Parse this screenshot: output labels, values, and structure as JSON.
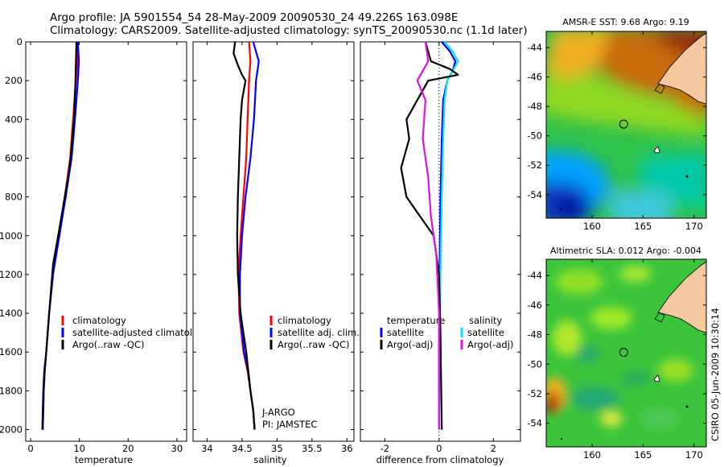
{
  "header": {
    "line1": "Argo profile: JA 5901554_54 28-May-2009 20090530_24 49.226S 163.098E",
    "line2": "Climatology: CARS2009. Satellite-adjusted climatology: synTS_20090530.nc (1.1d later)"
  },
  "footer_vertical": "CSIRO 05-Jun-2009 10:30:14",
  "colors": {
    "red": "#ff0000",
    "blue": "#0000ff",
    "black": "#000000",
    "cyan": "#00e5ff",
    "magenta": "#e010e0",
    "land": "#f5c8a0"
  },
  "chart_data": [
    {
      "type": "line",
      "xlabel": "temperature",
      "xlim": [
        -1,
        32
      ],
      "xticks": [
        "0",
        "10",
        "20",
        "30"
      ],
      "xtick_values": [
        0,
        10,
        20,
        30
      ],
      "ylim": [
        2060,
        0
      ],
      "yticks": [
        "0",
        "200",
        "400",
        "600",
        "800",
        "1000",
        "1200",
        "1400",
        "1600",
        "1800",
        "2000"
      ],
      "ytick_values": [
        0,
        200,
        400,
        600,
        800,
        1000,
        1200,
        1400,
        1600,
        1800,
        2000
      ],
      "legend": [
        "climatology",
        "satellite-adjusted climatology",
        "Argo(..raw -QC)"
      ],
      "series": [
        {
          "name": "climatology",
          "color": "red",
          "x": [
            9.6,
            9.6,
            9.3,
            8.7,
            8.1,
            7.0,
            5.8,
            4.6,
            3.8,
            3.2,
            2.9,
            2.7,
            2.6,
            2.5
          ],
          "y": [
            0,
            100,
            200,
            400,
            600,
            800,
            1000,
            1200,
            1400,
            1600,
            1700,
            1800,
            1900,
            2000
          ]
        },
        {
          "name": "satellite-adjusted climatology",
          "color": "blue",
          "x": [
            9.7,
            9.9,
            9.7,
            9.1,
            8.4,
            7.2,
            5.9,
            4.6,
            3.8,
            3.2,
            2.9,
            2.7,
            2.6,
            2.5
          ],
          "y": [
            0,
            100,
            200,
            400,
            600,
            800,
            1000,
            1200,
            1400,
            1600,
            1700,
            1800,
            1900,
            2000
          ]
        },
        {
          "name": "Argo(..raw -QC)",
          "color": "black",
          "x": [
            9.4,
            9.3,
            9.2,
            8.9,
            8.2,
            7.7,
            7.0,
            6.0,
            4.6,
            3.8,
            3.2,
            2.8,
            2.6,
            2.5,
            2.4
          ],
          "y": [
            0,
            100,
            200,
            400,
            600,
            700,
            800,
            950,
            1150,
            1400,
            1600,
            1700,
            1800,
            1900,
            2000
          ]
        }
      ]
    },
    {
      "type": "line",
      "xlabel": "salinity",
      "xlim": [
        33.8,
        36.1
      ],
      "xticks": [
        "34",
        "34.5",
        "35",
        "35.5",
        "36"
      ],
      "xtick_values": [
        34,
        34.5,
        35,
        35.5,
        36
      ],
      "ylim": [
        2060,
        0
      ],
      "legend": [
        "climatology",
        "satellite adj. clim.",
        "Argo(..raw -QC)"
      ],
      "annotation": [
        "J-ARGO",
        "PI: JAMSTEC"
      ],
      "series": [
        {
          "name": "climatology",
          "color": "red",
          "x": [
            34.6,
            34.62,
            34.6,
            34.58,
            34.56,
            34.52,
            34.48,
            34.45,
            34.46,
            34.52,
            34.58,
            34.62,
            34.66,
            34.68
          ],
          "y": [
            0,
            100,
            200,
            400,
            600,
            800,
            1000,
            1200,
            1400,
            1600,
            1700,
            1800,
            1900,
            2000
          ]
        },
        {
          "name": "satellite adj. clim.",
          "color": "blue",
          "x": [
            34.66,
            34.74,
            34.7,
            34.67,
            34.62,
            34.55,
            34.5,
            34.47,
            34.47,
            34.53,
            34.59,
            34.62,
            34.66,
            34.68
          ],
          "y": [
            0,
            100,
            200,
            400,
            600,
            800,
            1000,
            1200,
            1400,
            1600,
            1700,
            1800,
            1900,
            2000
          ]
        },
        {
          "name": "Argo(..raw -QC)",
          "color": "black",
          "x": [
            34.4,
            34.38,
            34.44,
            34.5,
            34.55,
            34.5,
            34.48,
            34.46,
            34.44,
            34.43,
            34.44,
            34.48,
            34.56,
            34.62,
            34.66,
            34.68
          ],
          "y": [
            0,
            60,
            120,
            170,
            200,
            300,
            400,
            600,
            800,
            1000,
            1200,
            1400,
            1600,
            1800,
            1900,
            2000
          ]
        }
      ]
    },
    {
      "type": "line",
      "xlabel": "difference from climatology",
      "xlim": [
        -2.9,
        3.0
      ],
      "xticks": [
        "-2",
        "0",
        "2"
      ],
      "xtick_values": [
        -2,
        0,
        2
      ],
      "ylim": [
        2060,
        0
      ],
      "legend_left": [
        "temperature",
        "satellite",
        "Argo(-adj)"
      ],
      "legend_right": [
        "salinity",
        "satellite",
        "Argo(-adj)"
      ],
      "series": [
        {
          "name": "temperature satellite",
          "color": "blue",
          "x": [
            0.1,
            0.4,
            0.6,
            0.5,
            0.3,
            0.15,
            0.1,
            0.05,
            0.02,
            0.0,
            0.0
          ],
          "y": [
            0,
            50,
            100,
            150,
            200,
            300,
            500,
            800,
            1200,
            1600,
            2000
          ]
        },
        {
          "name": "salinity satellite",
          "color": "cyan",
          "x": [
            0.2,
            0.5,
            0.7,
            0.5,
            0.3,
            0.2,
            0.15,
            0.1,
            0.05,
            0.02,
            0.0
          ],
          "y": [
            0,
            50,
            100,
            150,
            200,
            300,
            500,
            800,
            1200,
            1600,
            2000
          ]
        },
        {
          "name": "temperature Argo(-adj)",
          "color": "black",
          "x": [
            -0.5,
            -0.3,
            0.4,
            0.7,
            -0.4,
            -0.8,
            -1.2,
            -1.1,
            -1.4,
            -1.2,
            -0.7,
            -0.2,
            0.0,
            0.05,
            0.08,
            0.1
          ],
          "y": [
            0,
            100,
            140,
            170,
            200,
            300,
            400,
            500,
            650,
            800,
            900,
            1000,
            1200,
            1500,
            1800,
            2000
          ]
        },
        {
          "name": "salinity Argo(-adj)",
          "color": "magenta",
          "x": [
            -0.5,
            -0.4,
            -0.8,
            -0.5,
            -0.6,
            -0.4,
            -0.3,
            -0.1,
            0.0,
            0.0,
            0.0
          ],
          "y": [
            0,
            100,
            200,
            300,
            500,
            700,
            900,
            1100,
            1400,
            1700,
            2000
          ]
        }
      ]
    },
    {
      "type": "heatmap",
      "title": "AMSR-E SST: 9.68 Argo: 9.19",
      "xlim": [
        155.5,
        171.2
      ],
      "ylim": [
        -55.6,
        -42.9
      ],
      "xticks": [
        "160",
        "165",
        "170"
      ],
      "xtick_values": [
        160,
        165,
        170
      ],
      "yticks": [
        "-44",
        "-46",
        "-48",
        "-50",
        "-52",
        "-54"
      ],
      "ytick_values": [
        -44,
        -46,
        -48,
        -50,
        -52,
        -54
      ],
      "marker": {
        "lon": 163.1,
        "lat": -49.2
      }
    },
    {
      "type": "heatmap",
      "title": "Altimetric SLA: 0.012 Argo: -0.004",
      "xlim": [
        155.5,
        171.2
      ],
      "ylim": [
        -55.6,
        -42.9
      ],
      "xticks": [
        "160",
        "165",
        "170"
      ],
      "xtick_values": [
        160,
        165,
        170
      ],
      "yticks": [
        "-44",
        "-46",
        "-48",
        "-50",
        "-52",
        "-54"
      ],
      "ytick_values": [
        -44,
        -46,
        -48,
        -50,
        -52,
        -54
      ],
      "marker": {
        "lon": 163.1,
        "lat": -49.2
      }
    }
  ]
}
